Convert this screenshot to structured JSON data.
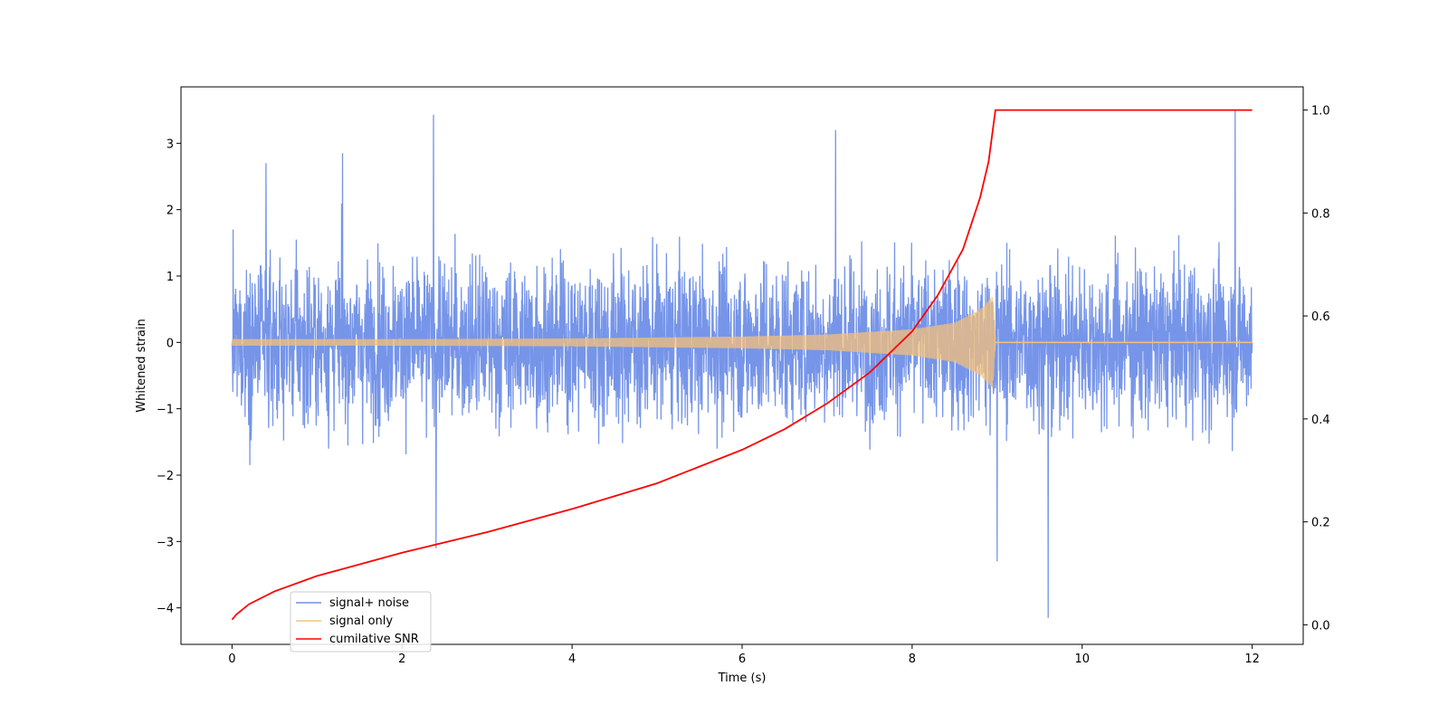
{
  "chart_data": {
    "type": "line",
    "title": "",
    "xlabel": "Time (s)",
    "ylabel": "Whitened strain",
    "y2label": "",
    "xlim": [
      -0.6,
      12.6
    ],
    "ylim": [
      -4.55,
      3.85
    ],
    "y2lim": [
      -0.038,
      1.045
    ],
    "x_ticks": [
      0,
      2,
      4,
      6,
      8,
      10,
      12
    ],
    "y_ticks": [
      -4,
      -3,
      -2,
      -1,
      0,
      1,
      2,
      3
    ],
    "y2_ticks": [
      0.0,
      0.2,
      0.4,
      0.6,
      0.8,
      1.0
    ],
    "x_tick_labels": [
      "0",
      "2",
      "4",
      "6",
      "8",
      "10",
      "12"
    ],
    "y_tick_labels": [
      "−4",
      "−3",
      "−2",
      "−1",
      "0",
      "1",
      "2",
      "3"
    ],
    "y2_tick_labels": [
      "0.0",
      "0.2",
      "0.4",
      "0.6",
      "0.8",
      "1.0"
    ],
    "grid": false,
    "legend_position": "lower-left",
    "series": [
      {
        "name": "signal+ noise",
        "axis": "left",
        "color": "#6f8fe8",
        "description_points": [
          [
            0.0,
            0.0
          ],
          [
            0.4,
            2.7
          ],
          [
            1.3,
            2.85
          ],
          [
            2.37,
            3.43
          ],
          [
            2.4,
            -3.1
          ],
          [
            7.1,
            3.2
          ],
          [
            9.0,
            -3.3
          ],
          [
            9.6,
            -4.15
          ],
          [
            11.8,
            3.5
          ],
          [
            12.0,
            0.0
          ]
        ]
      },
      {
        "name": "signal only",
        "axis": "left",
        "color": "#f5c078",
        "envelope_points": [
          [
            0.0,
            0.05
          ],
          [
            2.0,
            0.05
          ],
          [
            4.0,
            0.06
          ],
          [
            6.0,
            0.09
          ],
          [
            7.0,
            0.12
          ],
          [
            8.0,
            0.2
          ],
          [
            8.5,
            0.3
          ],
          [
            8.8,
            0.5
          ],
          [
            8.95,
            0.7
          ],
          [
            8.98,
            0.0
          ],
          [
            12.0,
            0.0
          ]
        ]
      },
      {
        "name": "cumilative SNR",
        "axis": "right",
        "color": "#ff0000",
        "x": [
          0.0,
          0.05,
          0.2,
          0.5,
          1.0,
          2.0,
          3.0,
          4.0,
          5.0,
          6.0,
          6.5,
          7.0,
          7.5,
          8.0,
          8.3,
          8.6,
          8.8,
          8.9,
          8.98,
          9.0,
          10.0,
          11.0,
          12.0
        ],
        "values": [
          0.01,
          0.02,
          0.04,
          0.065,
          0.095,
          0.14,
          0.18,
          0.225,
          0.275,
          0.34,
          0.38,
          0.43,
          0.49,
          0.57,
          0.64,
          0.73,
          0.83,
          0.9,
          1.0,
          1.0,
          1.0,
          1.0,
          1.0
        ]
      }
    ]
  }
}
